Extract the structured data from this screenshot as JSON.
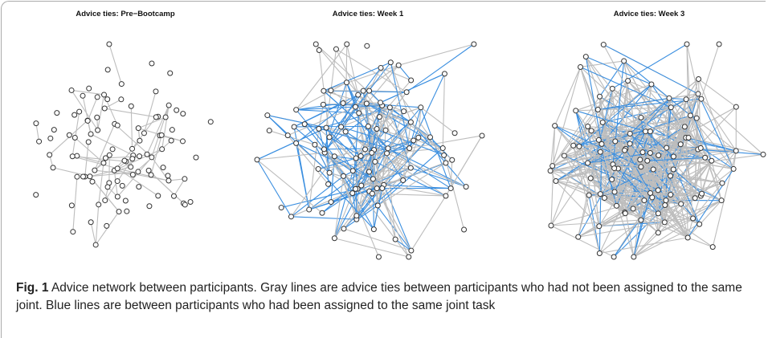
{
  "figure": {
    "panels": [
      {
        "title": "Advice ties: Pre−Bootcamp"
      },
      {
        "title": "Advice ties: Week 1"
      },
      {
        "title": "Advice ties: Week 3"
      }
    ],
    "caption": {
      "label": "Fig. 1",
      "text": "Advice network between participants. Gray lines are advice ties between participants who had not been assigned to the same joint. Blue lines are between participants who had been assigned to the same joint task"
    }
  }
}
